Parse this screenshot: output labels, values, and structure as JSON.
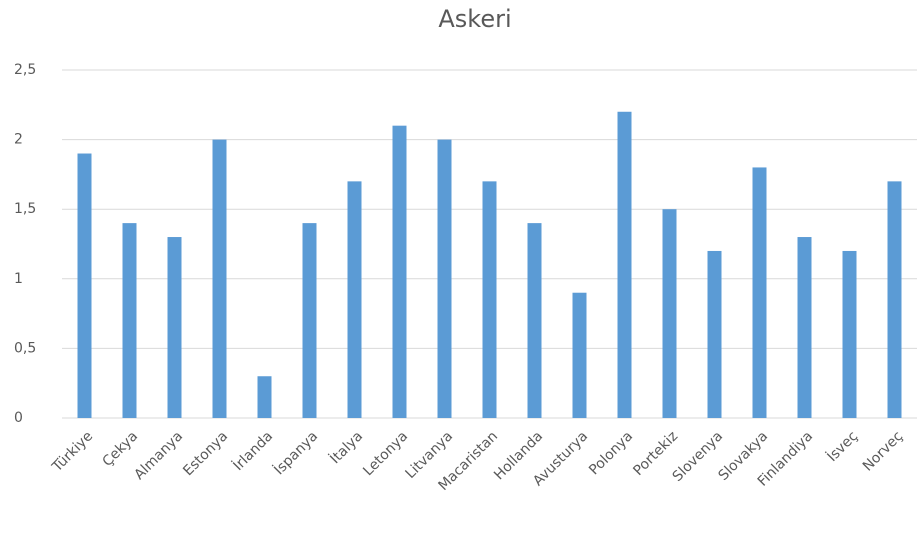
{
  "chart_data": {
    "type": "bar",
    "title": "Askeri",
    "categories": [
      "Türkiye",
      "Çekya",
      "Almanya",
      "Estonya",
      "İrlanda",
      "İspanya",
      "İtalya",
      "Letonya",
      "Litvanya",
      "Macaristan",
      "Hollanda",
      "Avusturya",
      "Polonya",
      "Portekiz",
      "Slovenya",
      "Slovakya",
      "Finlandiya",
      "İsveç",
      "Norveç"
    ],
    "values": [
      1.9,
      1.4,
      1.3,
      2.0,
      0.3,
      1.4,
      1.7,
      2.1,
      2.0,
      1.7,
      1.4,
      0.9,
      2.2,
      1.5,
      1.2,
      1.8,
      1.3,
      1.2,
      1.7
    ],
    "color": "#5b9bd5",
    "ylim": [
      0,
      2.5
    ],
    "yticks": [
      0,
      {
        "value": 0.5,
        "label": "0,5"
      },
      1,
      {
        "value": 1.5,
        "label": "1,5"
      },
      2,
      {
        "value": 2.5,
        "label": "2,5"
      }
    ],
    "grid": true
  }
}
